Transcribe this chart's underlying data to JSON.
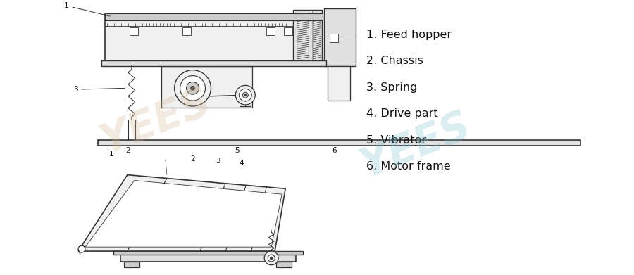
{
  "bg_color": "#ffffff",
  "lc": "#333333",
  "lc_thin": "#555555",
  "fc_light": "#f0f0f0",
  "fc_mid": "#e0e0e0",
  "fc_dark": "#cccccc",
  "watermark_color1": "#d4b896",
  "watermark_color2": "#7bbfcf",
  "legend_items": [
    "1. Feed hopper",
    "2. Chassis",
    "3. Spring",
    "4. Drive part",
    "5. Vibrator",
    "6. Motor frame"
  ],
  "legend_fontsize": 11.5
}
